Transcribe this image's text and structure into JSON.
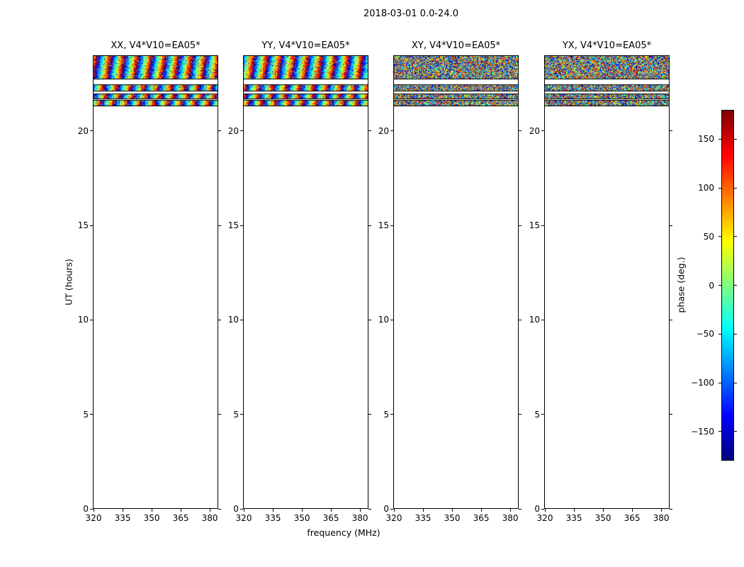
{
  "chart_data": {
    "type": "heatmap",
    "title": "2018-03-01 0.0-24.0",
    "xlabel": "frequency (MHz)",
    "ylabel": "UT (hours)",
    "xlim": [
      320,
      384
    ],
    "ylim": [
      0,
      24
    ],
    "xticks": [
      320,
      335,
      350,
      365,
      380
    ],
    "yticks": [
      0,
      5,
      10,
      15,
      20
    ],
    "panels": [
      {
        "id": "XX",
        "title": "XX, V4*V10=EA05*",
        "pattern": "vertical-rainbow-stripes"
      },
      {
        "id": "YY",
        "title": "YY, V4*V10=EA05*",
        "pattern": "vertical-rainbow-stripes"
      },
      {
        "id": "XY",
        "title": "XY, V4*V10=EA05*",
        "pattern": "random-noise"
      },
      {
        "id": "YX",
        "title": "YX, V4*V10=EA05*",
        "pattern": "random-noise"
      }
    ],
    "data_segments_ut": [
      [
        22.8,
        24.0
      ],
      [
        22.16,
        22.46
      ],
      [
        21.74,
        21.98
      ],
      [
        21.38,
        21.62
      ]
    ],
    "stripe_period_mhz": 7,
    "colormap": "jet",
    "value_units": "degrees",
    "colorbar": {
      "label": "phase (deg.)",
      "min": -180,
      "max": 180,
      "ticks": [
        150,
        100,
        50,
        0,
        -50,
        -100,
        -150
      ]
    },
    "description": "Phase vs frequency/time waterfall for baseline V4*V10=EA05*; data present only near 21.4-24.0 UT. XX/YY panels show phase-wrapping rainbow stripes across frequency; XY/YX panels show random phase noise. Axes span 0-24 UT hours and 320-384 MHz."
  }
}
